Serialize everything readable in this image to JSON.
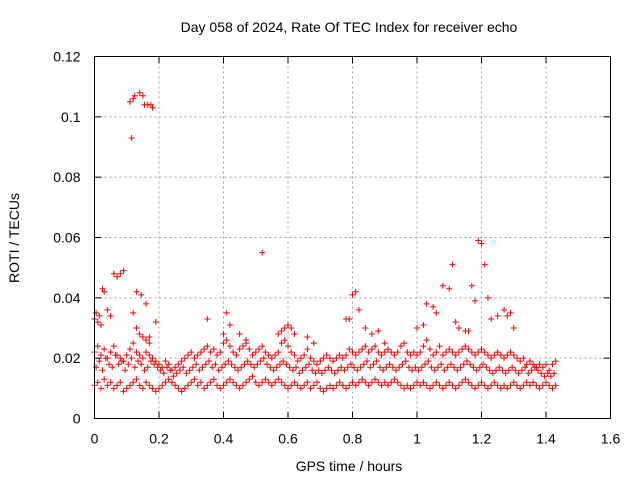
{
  "chart_data": {
    "type": "scatter",
    "title": "Day 058 of 2024, Rate Of TEC Index for receiver echo",
    "xlabel": "GPS time / hours",
    "ylabel": "ROTI / TECUs",
    "xlim": [
      0,
      1.6
    ],
    "ylim": [
      0,
      0.12
    ],
    "xticks": [
      0,
      0.2,
      0.4,
      0.6,
      0.8,
      1,
      1.2,
      1.4,
      1.6
    ],
    "xtick_labels": [
      "0",
      "0.2",
      "0.4",
      "0.6",
      "0.8",
      "1",
      "1.2",
      "1.4",
      "1.6"
    ],
    "yticks": [
      0,
      0.02,
      0.04,
      0.06,
      0.08,
      0.1,
      0.12
    ],
    "ytick_labels": [
      "0",
      "0.02",
      "0.04",
      "0.06",
      "0.08",
      "0.1",
      "0.12"
    ],
    "grid": true,
    "marker": "plus",
    "color": "#ff0000",
    "series": [
      {
        "x": [
          0.0,
          0.01,
          0.02,
          0.03,
          0.04,
          0.05,
          0.06,
          0.07,
          0.08,
          0.09,
          0.1,
          0.11,
          0.12,
          0.13,
          0.14,
          0.15,
          0.16,
          0.17,
          0.18,
          0.19,
          0.2,
          0.21,
          0.22,
          0.23,
          0.24,
          0.25,
          0.26,
          0.27,
          0.28,
          0.29,
          0.3,
          0.31,
          0.32,
          0.33,
          0.34,
          0.35,
          0.36,
          0.37,
          0.38,
          0.39,
          0.4,
          0.41,
          0.42,
          0.43,
          0.44,
          0.45,
          0.46,
          0.47,
          0.48,
          0.49,
          0.5,
          0.51,
          0.52,
          0.53,
          0.54,
          0.55,
          0.56,
          0.57,
          0.58,
          0.59,
          0.6,
          0.61,
          0.62,
          0.63,
          0.64,
          0.65,
          0.66,
          0.67,
          0.68,
          0.69,
          0.7,
          0.71,
          0.72,
          0.73,
          0.74,
          0.75,
          0.76,
          0.77,
          0.78,
          0.79,
          0.8,
          0.81,
          0.82,
          0.83,
          0.84,
          0.85,
          0.86,
          0.87,
          0.88,
          0.89,
          0.9,
          0.91,
          0.92,
          0.93,
          0.94,
          0.95,
          0.96,
          0.97,
          0.98,
          0.99,
          1.0,
          1.01,
          1.02,
          1.03,
          1.04,
          1.05,
          1.06,
          1.07,
          1.08,
          1.09,
          1.1,
          1.11,
          1.12,
          1.13,
          1.14,
          1.15,
          1.16,
          1.17,
          1.18,
          1.19,
          1.2,
          1.21,
          1.22,
          1.23,
          1.24,
          1.25,
          1.26,
          1.27,
          1.28,
          1.29,
          1.3,
          1.31,
          1.32,
          1.33,
          1.34,
          1.35,
          1.36,
          1.37,
          1.38,
          1.39,
          1.4,
          1.41,
          1.42,
          1.43,
          0.005,
          0.015,
          0.025,
          0.035,
          0.045,
          0.055,
          0.065,
          0.075,
          0.085,
          0.095,
          0.105,
          0.115,
          0.125,
          0.135,
          0.145,
          0.155,
          0.165,
          0.175,
          0.185,
          0.195,
          0.205,
          0.215,
          0.225,
          0.235,
          0.245,
          0.255,
          0.265,
          0.275,
          0.285,
          0.295,
          0.305,
          0.315,
          0.325,
          0.335,
          0.345,
          0.355,
          0.365,
          0.375,
          0.385,
          0.395,
          0.405,
          0.415,
          0.425,
          0.435,
          0.445,
          0.455,
          0.465,
          0.475,
          0.485,
          0.495,
          0.505,
          0.515,
          0.525,
          0.535,
          0.545,
          0.555,
          0.565,
          0.575,
          0.585,
          0.595,
          0.605,
          0.615,
          0.625,
          0.635,
          0.645,
          0.655,
          0.665,
          0.675,
          0.685,
          0.695,
          0.705,
          0.715,
          0.725,
          0.735,
          0.745,
          0.755,
          0.765,
          0.775,
          0.785,
          0.795,
          0.805,
          0.815,
          0.825,
          0.835,
          0.845,
          0.855,
          0.865,
          0.875,
          0.885,
          0.895,
          0.905,
          0.915,
          0.925,
          0.935,
          0.945,
          0.955,
          0.965,
          0.975,
          0.985,
          0.995,
          1.005,
          1.015,
          1.025,
          1.035,
          1.045,
          1.055,
          1.065,
          1.075,
          1.085,
          1.095,
          1.105,
          1.115,
          1.125,
          1.135,
          1.145,
          1.155,
          1.165,
          1.175,
          1.185,
          1.195,
          1.205,
          1.215,
          1.225,
          1.235,
          1.245,
          1.255,
          1.265,
          1.275,
          1.285,
          1.295,
          1.305,
          1.315,
          1.325,
          1.335,
          1.345,
          1.355,
          1.365,
          1.375,
          1.385,
          1.395,
          1.405,
          1.415,
          1.425,
          0.0,
          0.01,
          0.02,
          0.03,
          0.04,
          0.05,
          0.06,
          0.07,
          0.08,
          0.09,
          0.1,
          0.11,
          0.12,
          0.13,
          0.14,
          0.15,
          0.16,
          0.17,
          0.18,
          0.19,
          0.2,
          0.21,
          0.22,
          0.23,
          0.24,
          0.25,
          0.26,
          0.27,
          0.28,
          0.29,
          0.3,
          0.31,
          0.32,
          0.33,
          0.34,
          0.35,
          0.36,
          0.37,
          0.38,
          0.39,
          0.4,
          0.41,
          0.42,
          0.43,
          0.44,
          0.45,
          0.46,
          0.47,
          0.48,
          0.49,
          0.5,
          0.51,
          0.52,
          0.53,
          0.54,
          0.55,
          0.56,
          0.57,
          0.58,
          0.59,
          0.6,
          0.61,
          0.62,
          0.63,
          0.64,
          0.65,
          0.66,
          0.67,
          0.68,
          0.69,
          0.7,
          0.71,
          0.72,
          0.73,
          0.74,
          0.75,
          0.76,
          0.77,
          0.78,
          0.79,
          0.8,
          0.81,
          0.82,
          0.83,
          0.84,
          0.85,
          0.86,
          0.87,
          0.88,
          0.89,
          0.9,
          0.91,
          0.92,
          0.93,
          0.94,
          0.95,
          0.96,
          0.97,
          0.98,
          0.99,
          1.0,
          1.01,
          1.02,
          1.03,
          1.04,
          1.05,
          1.06,
          1.07,
          1.08,
          1.09,
          1.1,
          1.11,
          1.12,
          1.13,
          1.14,
          1.15,
          1.16,
          1.17,
          1.18,
          1.19,
          1.2,
          1.21,
          1.22,
          1.23,
          1.24,
          1.25,
          1.26,
          1.27,
          1.28,
          1.29,
          1.3,
          1.31,
          1.32,
          1.33,
          1.34,
          1.35,
          1.36,
          1.37,
          1.38,
          1.39,
          1.4,
          1.41,
          1.42,
          1.43,
          0.0,
          0.005,
          0.01,
          0.015,
          0.02,
          0.025,
          0.03,
          0.04,
          0.05,
          0.06,
          0.07,
          0.08,
          0.09,
          0.11,
          0.115,
          0.12,
          0.125,
          0.13,
          0.14,
          0.145,
          0.15,
          0.155,
          0.16,
          0.165,
          0.17,
          0.175,
          0.18,
          0.19,
          0.12,
          0.13,
          0.14,
          0.15,
          0.16,
          0.17,
          0.35,
          0.4,
          0.41,
          0.42,
          0.45,
          0.47,
          0.52,
          0.57,
          0.58,
          0.59,
          0.6,
          0.61,
          0.62,
          0.66,
          0.68,
          0.78,
          0.79,
          0.8,
          0.81,
          0.82,
          0.84,
          0.86,
          0.88,
          0.9,
          1.0,
          1.02,
          1.03,
          1.05,
          1.06,
          1.08,
          1.1,
          1.11,
          1.12,
          1.13,
          1.15,
          1.16,
          1.17,
          1.18,
          1.19,
          1.2,
          1.21,
          1.22,
          1.23,
          1.25,
          1.27,
          1.28,
          1.29,
          1.3
        ],
        "y": [
          0.011,
          0.012,
          0.01,
          0.013,
          0.011,
          0.012,
          0.01,
          0.011,
          0.012,
          0.009,
          0.01,
          0.011,
          0.012,
          0.013,
          0.011,
          0.01,
          0.012,
          0.011,
          0.01,
          0.009,
          0.01,
          0.011,
          0.012,
          0.013,
          0.012,
          0.011,
          0.01,
          0.009,
          0.01,
          0.011,
          0.012,
          0.013,
          0.011,
          0.012,
          0.01,
          0.011,
          0.012,
          0.013,
          0.011,
          0.01,
          0.011,
          0.012,
          0.013,
          0.012,
          0.011,
          0.01,
          0.011,
          0.012,
          0.013,
          0.014,
          0.012,
          0.011,
          0.012,
          0.013,
          0.012,
          0.011,
          0.012,
          0.013,
          0.012,
          0.011,
          0.01,
          0.011,
          0.012,
          0.011,
          0.01,
          0.011,
          0.012,
          0.01,
          0.011,
          0.012,
          0.01,
          0.009,
          0.01,
          0.011,
          0.01,
          0.011,
          0.012,
          0.011,
          0.01,
          0.011,
          0.012,
          0.011,
          0.012,
          0.013,
          0.012,
          0.011,
          0.012,
          0.013,
          0.012,
          0.011,
          0.012,
          0.011,
          0.012,
          0.013,
          0.012,
          0.011,
          0.01,
          0.011,
          0.01,
          0.011,
          0.012,
          0.011,
          0.012,
          0.011,
          0.01,
          0.011,
          0.012,
          0.011,
          0.01,
          0.011,
          0.012,
          0.011,
          0.01,
          0.011,
          0.012,
          0.013,
          0.012,
          0.011,
          0.01,
          0.011,
          0.012,
          0.011,
          0.01,
          0.011,
          0.012,
          0.011,
          0.01,
          0.011,
          0.01,
          0.011,
          0.012,
          0.011,
          0.01,
          0.011,
          0.012,
          0.011,
          0.012,
          0.011,
          0.01,
          0.011,
          0.012,
          0.011,
          0.01,
          0.011,
          0.017,
          0.019,
          0.016,
          0.02,
          0.018,
          0.017,
          0.021,
          0.018,
          0.019,
          0.016,
          0.018,
          0.02,
          0.017,
          0.019,
          0.018,
          0.016,
          0.017,
          0.019,
          0.018,
          0.017,
          0.016,
          0.015,
          0.017,
          0.016,
          0.014,
          0.015,
          0.016,
          0.017,
          0.015,
          0.016,
          0.017,
          0.018,
          0.016,
          0.017,
          0.018,
          0.019,
          0.017,
          0.018,
          0.016,
          0.017,
          0.018,
          0.019,
          0.018,
          0.017,
          0.016,
          0.017,
          0.018,
          0.019,
          0.018,
          0.017,
          0.018,
          0.019,
          0.02,
          0.018,
          0.017,
          0.016,
          0.017,
          0.018,
          0.019,
          0.018,
          0.017,
          0.016,
          0.017,
          0.015,
          0.016,
          0.017,
          0.018,
          0.016,
          0.015,
          0.016,
          0.015,
          0.016,
          0.017,
          0.016,
          0.015,
          0.016,
          0.017,
          0.016,
          0.017,
          0.018,
          0.017,
          0.016,
          0.017,
          0.018,
          0.019,
          0.017,
          0.018,
          0.019,
          0.017,
          0.016,
          0.017,
          0.018,
          0.017,
          0.016,
          0.017,
          0.018,
          0.019,
          0.017,
          0.016,
          0.017,
          0.016,
          0.017,
          0.018,
          0.019,
          0.017,
          0.016,
          0.017,
          0.018,
          0.016,
          0.017,
          0.018,
          0.017,
          0.016,
          0.017,
          0.018,
          0.019,
          0.018,
          0.017,
          0.016,
          0.017,
          0.018,
          0.017,
          0.016,
          0.015,
          0.016,
          0.017,
          0.016,
          0.015,
          0.016,
          0.017,
          0.016,
          0.015,
          0.016,
          0.017,
          0.015,
          0.016,
          0.017,
          0.016,
          0.015,
          0.014,
          0.015,
          0.014,
          0.015,
          0.022,
          0.024,
          0.021,
          0.023,
          0.02,
          0.022,
          0.024,
          0.021,
          0.02,
          0.019,
          0.021,
          0.023,
          0.025,
          0.022,
          0.021,
          0.02,
          0.022,
          0.021,
          0.02,
          0.019,
          0.018,
          0.017,
          0.019,
          0.018,
          0.016,
          0.017,
          0.018,
          0.019,
          0.02,
          0.021,
          0.022,
          0.02,
          0.021,
          0.022,
          0.023,
          0.024,
          0.022,
          0.023,
          0.021,
          0.022,
          0.025,
          0.026,
          0.024,
          0.022,
          0.021,
          0.023,
          0.024,
          0.025,
          0.023,
          0.021,
          0.022,
          0.023,
          0.024,
          0.022,
          0.021,
          0.02,
          0.021,
          0.022,
          0.025,
          0.026,
          0.024,
          0.022,
          0.021,
          0.019,
          0.02,
          0.021,
          0.023,
          0.02,
          0.019,
          0.018,
          0.019,
          0.02,
          0.021,
          0.02,
          0.019,
          0.02,
          0.021,
          0.02,
          0.021,
          0.023,
          0.022,
          0.021,
          0.022,
          0.023,
          0.024,
          0.022,
          0.023,
          0.024,
          0.022,
          0.021,
          0.022,
          0.023,
          0.022,
          0.021,
          0.022,
          0.024,
          0.025,
          0.022,
          0.021,
          0.022,
          0.021,
          0.022,
          0.024,
          0.026,
          0.023,
          0.021,
          0.022,
          0.024,
          0.021,
          0.022,
          0.023,
          0.022,
          0.021,
          0.022,
          0.023,
          0.024,
          0.023,
          0.022,
          0.021,
          0.022,
          0.023,
          0.022,
          0.021,
          0.02,
          0.021,
          0.022,
          0.021,
          0.02,
          0.021,
          0.022,
          0.021,
          0.02,
          0.019,
          0.02,
          0.018,
          0.019,
          0.018,
          0.017,
          0.018,
          0.017,
          0.018,
          0.016,
          0.018,
          0.019,
          0.033,
          0.035,
          0.032,
          0.034,
          0.031,
          0.043,
          0.042,
          0.036,
          0.034,
          0.048,
          0.047,
          0.048,
          0.049,
          0.105,
          0.093,
          0.106,
          0.107,
          0.042,
          0.108,
          0.041,
          0.107,
          0.104,
          0.038,
          0.104,
          0.027,
          0.104,
          0.103,
          0.032,
          0.035,
          0.03,
          0.028,
          0.027,
          0.026,
          0.025,
          0.033,
          0.028,
          0.035,
          0.031,
          0.028,
          0.026,
          0.055,
          0.028,
          0.029,
          0.03,
          0.031,
          0.03,
          0.028,
          0.027,
          0.025,
          0.033,
          0.033,
          0.041,
          0.042,
          0.036,
          0.03,
          0.028,
          0.029,
          0.025,
          0.03,
          0.031,
          0.038,
          0.037,
          0.035,
          0.044,
          0.043,
          0.051,
          0.032,
          0.03,
          0.029,
          0.029,
          0.044,
          0.039,
          0.059,
          0.058,
          0.051,
          0.04,
          0.033,
          0.034,
          0.036,
          0.034,
          0.035,
          0.03
        ]
      }
    ]
  }
}
